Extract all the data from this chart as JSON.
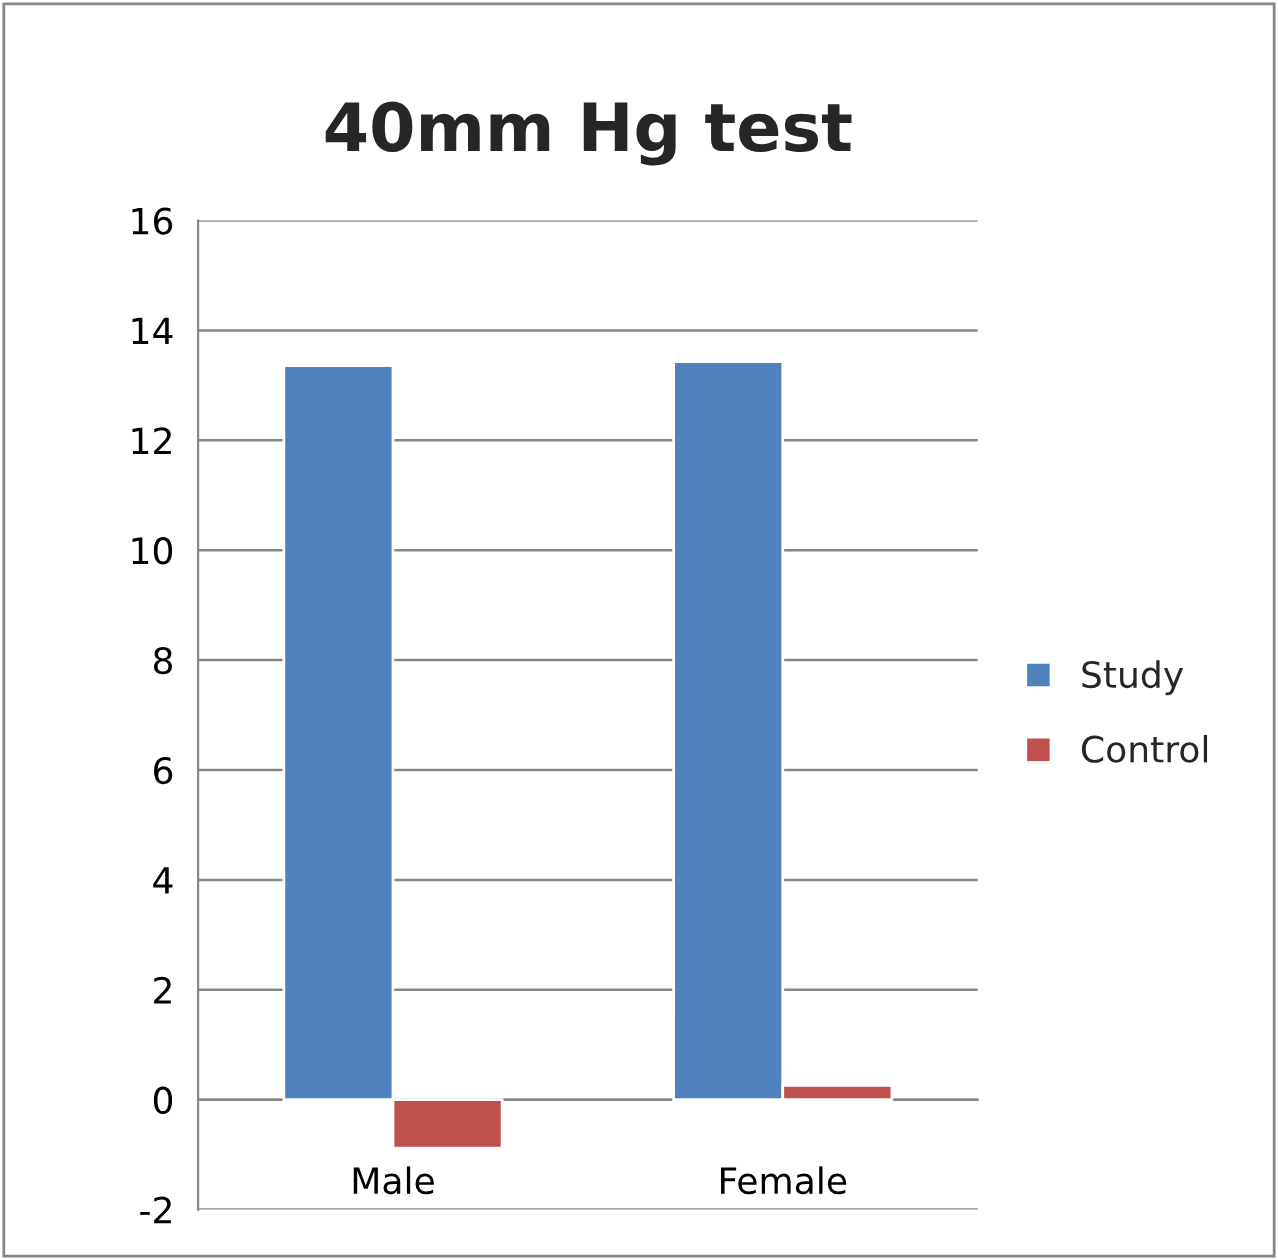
{
  "chart_data": {
    "type": "bar",
    "title": "40mm Hg test",
    "categories": [
      "Male",
      "Female"
    ],
    "series": [
      {
        "name": "Study",
        "color": "#4f81bd",
        "values": [
          13.36,
          13.43
        ]
      },
      {
        "name": "Control",
        "color": "#c0504d",
        "values": [
          -0.88,
          0.26
        ]
      }
    ],
    "ylim": [
      -2,
      16
    ],
    "yticks": [
      -2,
      0,
      2,
      4,
      6,
      8,
      10,
      12,
      14,
      16
    ],
    "grid": "y",
    "legend": "right"
  }
}
